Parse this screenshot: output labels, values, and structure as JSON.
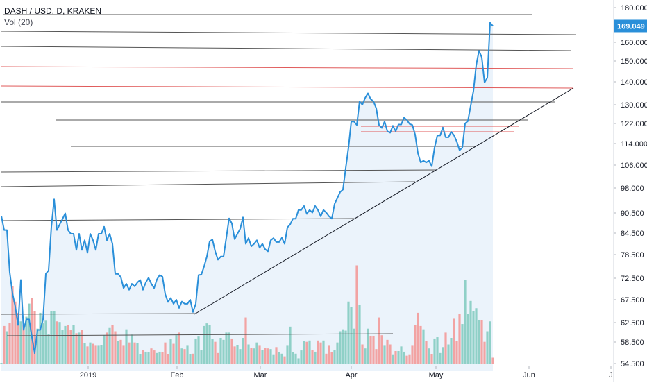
{
  "header": {
    "symbol": "DASH / USD, D, KRAKEN",
    "volume_label": "Vol (20)"
  },
  "colors": {
    "price_line": "#2a8fd9",
    "area_fill": "#dbeaf8",
    "last_price_badge": "#2a8fd9",
    "last_price_line": "#9fd0f0",
    "trend_line": "#131722",
    "level_gray": "#555555",
    "level_red": "#e05a5a",
    "vol_up": "#8fd0c7",
    "vol_down": "#f2a3a3",
    "axis_text": "#131722"
  },
  "chart_data": {
    "type": "line",
    "y_ticks": [
      "180.000",
      "170.000",
      "160.000",
      "150.000",
      "140.000",
      "130.000",
      "122.000",
      "114.000",
      "106.000",
      "98.000",
      "90.500",
      "84.500",
      "78.500",
      "72.500",
      "67.500",
      "62.500",
      "58.500",
      "54.500"
    ],
    "x_ticks": [
      "2019",
      "Feb",
      "Mar",
      "Apr",
      "May",
      "Jun",
      "J"
    ],
    "last_price": "169.049",
    "price_path": [
      [
        2,
        89.6
      ],
      [
        6,
        85.4
      ],
      [
        10,
        85.4
      ],
      [
        14,
        74.0
      ],
      [
        18,
        69.0
      ],
      [
        22,
        66.0
      ],
      [
        26,
        62.0
      ],
      [
        30,
        72.1
      ],
      [
        34,
        61.0
      ],
      [
        38,
        63.2
      ],
      [
        42,
        63.2
      ],
      [
        46,
        59.5
      ],
      [
        50,
        56.4
      ],
      [
        54,
        61.0
      ],
      [
        58,
        61.0
      ],
      [
        62,
        63.2
      ],
      [
        66,
        73.6
      ],
      [
        70,
        74.5
      ],
      [
        74,
        86.4
      ],
      [
        78,
        94.6
      ],
      [
        82,
        85.4
      ],
      [
        86,
        87.1
      ],
      [
        90,
        88.7
      ],
      [
        94,
        90.4
      ],
      [
        98,
        85.4
      ],
      [
        102,
        84.3
      ],
      [
        106,
        84.3
      ],
      [
        110,
        79.8
      ],
      [
        114,
        84.3
      ],
      [
        118,
        79.8
      ],
      [
        122,
        82.5
      ],
      [
        126,
        79.0
      ],
      [
        130,
        84.3
      ],
      [
        134,
        82.5
      ],
      [
        138,
        79.8
      ],
      [
        142,
        84.3
      ],
      [
        146,
        84.3
      ],
      [
        150,
        86.4
      ],
      [
        154,
        82.5
      ],
      [
        158,
        84.3
      ],
      [
        162,
        81.5
      ],
      [
        166,
        73.6
      ],
      [
        170,
        73.6
      ],
      [
        174,
        72.8
      ],
      [
        178,
        70.2
      ],
      [
        182,
        71.2
      ],
      [
        186,
        69.8
      ],
      [
        190,
        71.2
      ],
      [
        194,
        70.6
      ],
      [
        198,
        71.5
      ],
      [
        202,
        72.1
      ],
      [
        206,
        69.8
      ],
      [
        210,
        71.5
      ],
      [
        214,
        72.6
      ],
      [
        218,
        71.2
      ],
      [
        222,
        70.2
      ],
      [
        226,
        72.2
      ],
      [
        230,
        73.3
      ],
      [
        234,
        72.9
      ],
      [
        238,
        68.8
      ],
      [
        242,
        67.0
      ],
      [
        246,
        67.9
      ],
      [
        250,
        66.6
      ],
      [
        254,
        67.5
      ],
      [
        258,
        65.7
      ],
      [
        262,
        67.1
      ],
      [
        266,
        66.6
      ],
      [
        270,
        66.6
      ],
      [
        274,
        67.5
      ],
      [
        278,
        64.8
      ],
      [
        282,
        66.6
      ],
      [
        286,
        73.3
      ],
      [
        290,
        73.4
      ],
      [
        294,
        75.5
      ],
      [
        298,
        78.0
      ],
      [
        302,
        82.2
      ],
      [
        306,
        82.7
      ],
      [
        310,
        79.4
      ],
      [
        314,
        77.2
      ],
      [
        318,
        78.0
      ],
      [
        322,
        78.0
      ],
      [
        326,
        83.2
      ],
      [
        330,
        88.9
      ],
      [
        334,
        87.4
      ],
      [
        338,
        82.8
      ],
      [
        342,
        84.3
      ],
      [
        346,
        85.8
      ],
      [
        350,
        89.2
      ],
      [
        354,
        81.5
      ],
      [
        358,
        83.1
      ],
      [
        362,
        80.8
      ],
      [
        366,
        81.5
      ],
      [
        370,
        82.5
      ],
      [
        374,
        80.4
      ],
      [
        378,
        81.5
      ],
      [
        382,
        80.0
      ],
      [
        386,
        79.4
      ],
      [
        390,
        82.5
      ],
      [
        394,
        83.1
      ],
      [
        398,
        82.0
      ],
      [
        402,
        82.0
      ],
      [
        406,
        83.2
      ],
      [
        410,
        81.5
      ],
      [
        414,
        86.2
      ],
      [
        418,
        87.1
      ],
      [
        422,
        88.8
      ],
      [
        426,
        88.8
      ],
      [
        430,
        91.4
      ],
      [
        434,
        91.4
      ],
      [
        438,
        92.6
      ],
      [
        442,
        90.2
      ],
      [
        446,
        91.4
      ],
      [
        450,
        90.6
      ],
      [
        454,
        92.6
      ],
      [
        458,
        91.4
      ],
      [
        462,
        89.5
      ],
      [
        466,
        91.4
      ],
      [
        470,
        90.6
      ],
      [
        474,
        89.5
      ],
      [
        478,
        88.8
      ],
      [
        482,
        93.2
      ],
      [
        486,
        95.0
      ],
      [
        490,
        96.8
      ],
      [
        494,
        97.5
      ],
      [
        498,
        104.9
      ],
      [
        502,
        112.5
      ],
      [
        506,
        122.8
      ],
      [
        510,
        122.8
      ],
      [
        514,
        121.4
      ],
      [
        518,
        131.5
      ],
      [
        522,
        130.0
      ],
      [
        526,
        133.0
      ],
      [
        530,
        135.0
      ],
      [
        534,
        132.5
      ],
      [
        538,
        131.5
      ],
      [
        542,
        128.5
      ],
      [
        546,
        121.4
      ],
      [
        550,
        120.2
      ],
      [
        554,
        122.8
      ],
      [
        558,
        118.9
      ],
      [
        562,
        118.3
      ],
      [
        566,
        121.1
      ],
      [
        570,
        118.9
      ],
      [
        574,
        121.6
      ],
      [
        578,
        121.6
      ],
      [
        582,
        124.5
      ],
      [
        586,
        123.5
      ],
      [
        590,
        121.8
      ],
      [
        594,
        121.4
      ],
      [
        598,
        117.6
      ],
      [
        602,
        110.5
      ],
      [
        606,
        107.0
      ],
      [
        610,
        107.6
      ],
      [
        614,
        107.0
      ],
      [
        618,
        107.6
      ],
      [
        622,
        105.6
      ],
      [
        626,
        112.5
      ],
      [
        630,
        117.2
      ],
      [
        634,
        117.2
      ],
      [
        638,
        120.4
      ],
      [
        642,
        116.5
      ],
      [
        646,
        116.5
      ],
      [
        650,
        118.7
      ],
      [
        654,
        117.3
      ],
      [
        658,
        114.8
      ],
      [
        662,
        111.5
      ],
      [
        666,
        112.5
      ],
      [
        670,
        122.0
      ],
      [
        674,
        123.0
      ],
      [
        678,
        129.5
      ],
      [
        682,
        136.0
      ],
      [
        686,
        148.0
      ],
      [
        690,
        155.5
      ],
      [
        694,
        152.0
      ],
      [
        698,
        139.7
      ],
      [
        702,
        142.0
      ],
      [
        706,
        171.0
      ],
      [
        710,
        169.049
      ]
    ],
    "volume_bars": [
      [
        2,
        2
      ],
      [
        6,
        58
      ],
      [
        10,
        50
      ],
      [
        14,
        63
      ],
      [
        18,
        118
      ],
      [
        22,
        95
      ],
      [
        26,
        78
      ],
      [
        30,
        65
      ],
      [
        34,
        60
      ],
      [
        38,
        72
      ],
      [
        42,
        92
      ],
      [
        46,
        100
      ],
      [
        50,
        80
      ],
      [
        54,
        54
      ],
      [
        58,
        78
      ],
      [
        62,
        62
      ],
      [
        66,
        66
      ],
      [
        70,
        46
      ],
      [
        74,
        80
      ],
      [
        78,
        80
      ],
      [
        82,
        65
      ],
      [
        86,
        64
      ],
      [
        90,
        52
      ],
      [
        94,
        58
      ],
      [
        98,
        60
      ],
      [
        102,
        52
      ],
      [
        106,
        60
      ],
      [
        110,
        47
      ],
      [
        114,
        48
      ],
      [
        118,
        52
      ],
      [
        122,
        32
      ],
      [
        126,
        27
      ],
      [
        130,
        33
      ],
      [
        134,
        31
      ],
      [
        138,
        28
      ],
      [
        142,
        28
      ],
      [
        146,
        29
      ],
      [
        150,
        44
      ],
      [
        154,
        48
      ],
      [
        158,
        55
      ],
      [
        162,
        59
      ],
      [
        166,
        50
      ],
      [
        170,
        35
      ],
      [
        174,
        37
      ],
      [
        178,
        28
      ],
      [
        182,
        53
      ],
      [
        186,
        33
      ],
      [
        190,
        45
      ],
      [
        194,
        33
      ],
      [
        198,
        32
      ],
      [
        202,
        15
      ],
      [
        206,
        22
      ],
      [
        210,
        19
      ],
      [
        214,
        18
      ],
      [
        218,
        24
      ],
      [
        222,
        21
      ],
      [
        226,
        17
      ],
      [
        230,
        19
      ],
      [
        234,
        18
      ],
      [
        238,
        33
      ],
      [
        242,
        15
      ],
      [
        246,
        38
      ],
      [
        250,
        31
      ],
      [
        254,
        44
      ],
      [
        258,
        48
      ],
      [
        262,
        24
      ],
      [
        266,
        23
      ],
      [
        270,
        28
      ],
      [
        274,
        15
      ],
      [
        278,
        16
      ],
      [
        282,
        39
      ],
      [
        286,
        42
      ],
      [
        290,
        22
      ],
      [
        294,
        58
      ],
      [
        298,
        62
      ],
      [
        302,
        60
      ],
      [
        306,
        38
      ],
      [
        310,
        34
      ],
      [
        314,
        17
      ],
      [
        318,
        40
      ],
      [
        322,
        37
      ],
      [
        326,
        48
      ],
      [
        330,
        48
      ],
      [
        334,
        39
      ],
      [
        338,
        27
      ],
      [
        342,
        29
      ],
      [
        346,
        23
      ],
      [
        350,
        40
      ],
      [
        354,
        71
      ],
      [
        358,
        30
      ],
      [
        362,
        25
      ],
      [
        366,
        24
      ],
      [
        370,
        33
      ],
      [
        374,
        28
      ],
      [
        378,
        22
      ],
      [
        382,
        25
      ],
      [
        386,
        24
      ],
      [
        390,
        23
      ],
      [
        394,
        14
      ],
      [
        398,
        26
      ],
      [
        402,
        18
      ],
      [
        406,
        16
      ],
      [
        410,
        12
      ],
      [
        414,
        28
      ],
      [
        418,
        57
      ],
      [
        422,
        18
      ],
      [
        426,
        16
      ],
      [
        430,
        9
      ],
      [
        434,
        21
      ],
      [
        438,
        35
      ],
      [
        442,
        34
      ],
      [
        446,
        36
      ],
      [
        450,
        22
      ],
      [
        454,
        19
      ],
      [
        458,
        36
      ],
      [
        462,
        33
      ],
      [
        466,
        36
      ],
      [
        470,
        16
      ],
      [
        474,
        28
      ],
      [
        478,
        18
      ],
      [
        482,
        22
      ],
      [
        486,
        33
      ],
      [
        490,
        50
      ],
      [
        494,
        53
      ],
      [
        498,
        51
      ],
      [
        502,
        95
      ],
      [
        506,
        87
      ],
      [
        510,
        54
      ],
      [
        514,
        150
      ],
      [
        518,
        90
      ],
      [
        522,
        30
      ],
      [
        526,
        24
      ],
      [
        530,
        54
      ],
      [
        534,
        43
      ],
      [
        538,
        43
      ],
      [
        542,
        23
      ],
      [
        546,
        71
      ],
      [
        550,
        44
      ],
      [
        554,
        28
      ],
      [
        558,
        37
      ],
      [
        562,
        30
      ],
      [
        566,
        14
      ],
      [
        570,
        20
      ],
      [
        574,
        20
      ],
      [
        578,
        27
      ],
      [
        582,
        19
      ],
      [
        586,
        13
      ],
      [
        590,
        14
      ],
      [
        594,
        28
      ],
      [
        598,
        59
      ],
      [
        602,
        78
      ],
      [
        606,
        58
      ],
      [
        610,
        53
      ],
      [
        614,
        35
      ],
      [
        618,
        24
      ],
      [
        622,
        15
      ],
      [
        626,
        39
      ],
      [
        630,
        41
      ],
      [
        634,
        17
      ],
      [
        638,
        26
      ],
      [
        642,
        48
      ],
      [
        646,
        30
      ],
      [
        650,
        40
      ],
      [
        654,
        69
      ],
      [
        658,
        35
      ],
      [
        662,
        76
      ],
      [
        666,
        61
      ],
      [
        670,
        128
      ],
      [
        674,
        76
      ],
      [
        678,
        96
      ],
      [
        682,
        80
      ],
      [
        686,
        85
      ],
      [
        690,
        67
      ],
      [
        694,
        67
      ],
      [
        698,
        34
      ],
      [
        702,
        50
      ],
      [
        706,
        65
      ],
      [
        710,
        10
      ]
    ]
  }
}
